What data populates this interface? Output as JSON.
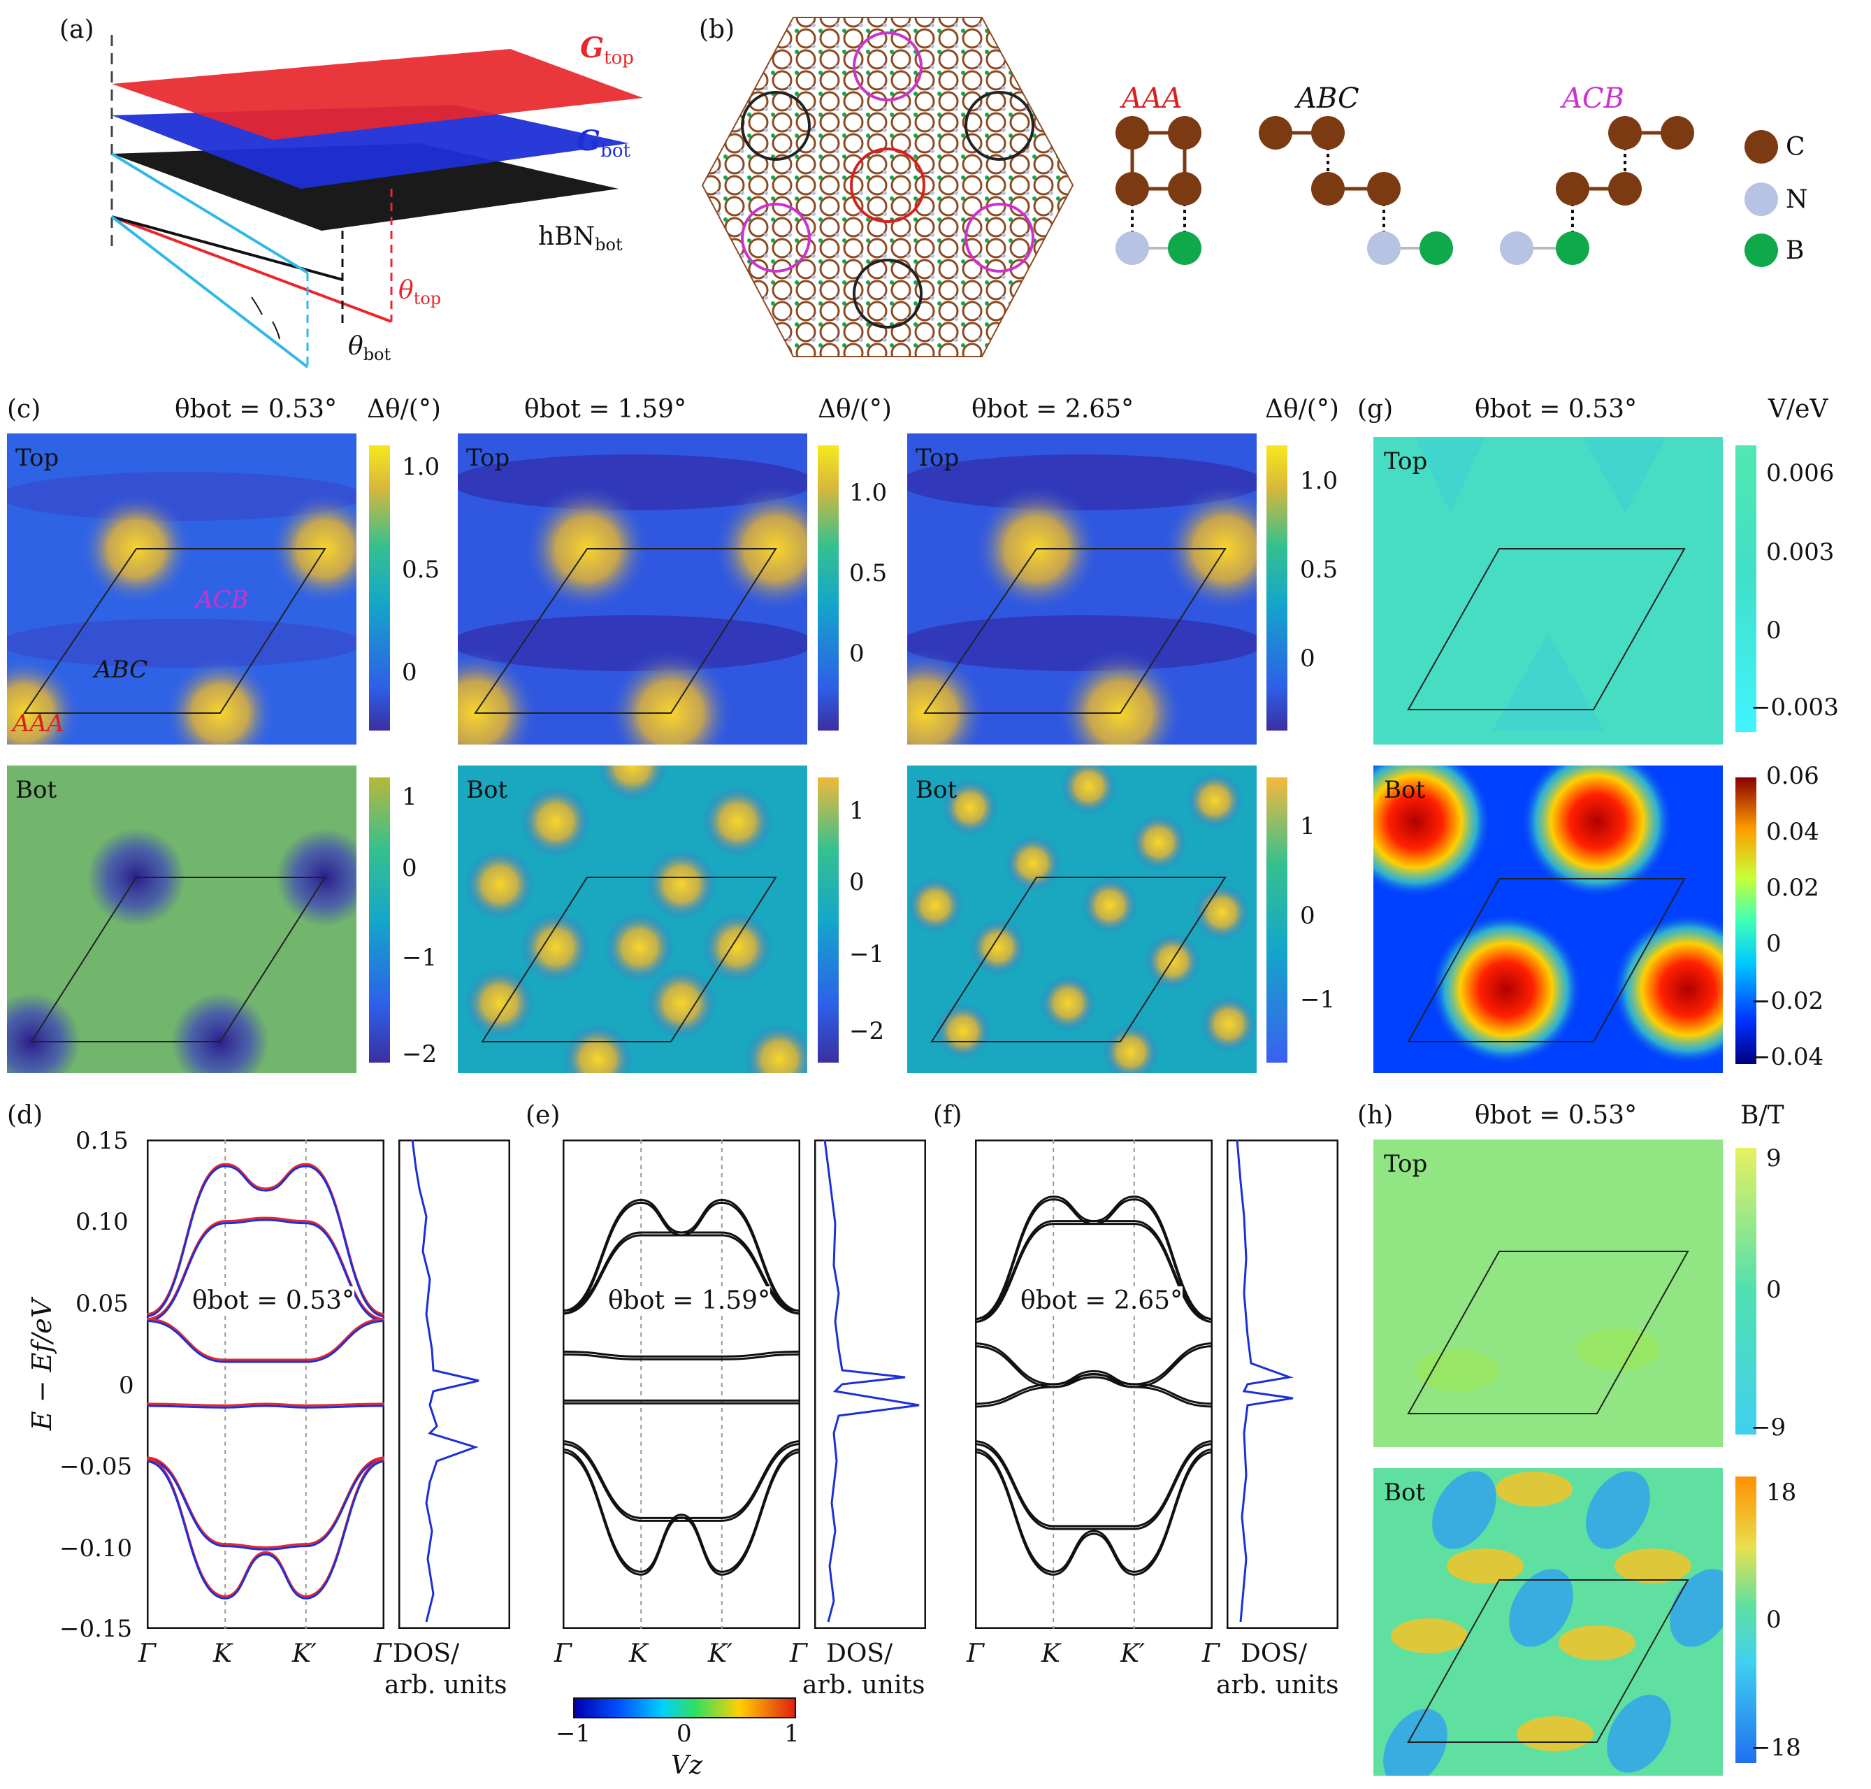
{
  "panels": {
    "a": {
      "label": "(a)",
      "g_top": "G",
      "g_top_sub": "top",
      "g_bot": "G",
      "g_bot_sub": "bot",
      "hbn": "hBN",
      "hbn_sub": "bot",
      "theta_top": "θ",
      "theta_top_sub": "top",
      "theta_bot": "θ",
      "theta_bot_sub": "bot",
      "colors": {
        "top": "#e8262b",
        "bot": "#1d2fd6",
        "hbn": "#1a1a1a",
        "cyan": "#30b8e8"
      }
    },
    "b": {
      "label": "(b)",
      "stackings": [
        "AAA",
        "ABC",
        "ACB"
      ],
      "legend": [
        "C",
        "N",
        "B"
      ],
      "colors": {
        "C": "#7b3a12",
        "N": "#b7c3e3",
        "B": "#0fa84a",
        "AAA": "#d62020",
        "ABC": "#111111",
        "ACB": "#cc33cc"
      }
    },
    "c": {
      "label": "(c)",
      "cb_title": "Δθ/(°)",
      "angles": [
        "θbot = 0.53°",
        "θbot = 1.59°",
        "θbot = 2.65°"
      ],
      "row_top": "Top",
      "row_bot": "Bot",
      "tags": {
        "AAA": "AAA",
        "ABC": "ABC",
        "ACB": "ACB"
      },
      "top_ticks": [
        [
          "1.0",
          "0.5",
          "0"
        ],
        [
          "1.0",
          "0.5",
          "0"
        ],
        [
          "1.0",
          "0.5",
          "0"
        ]
      ],
      "bot_ticks": [
        [
          "1",
          "0",
          "−1",
          "−2"
        ],
        [
          "1",
          "0",
          "−1",
          "−2"
        ],
        [
          "1",
          "0",
          "−1"
        ]
      ]
    },
    "g": {
      "label": "(g)",
      "angle": "θbot = 0.53°",
      "cb_title": "V/eV",
      "row_top": "Top",
      "row_bot": "Bot",
      "top_ticks": [
        "0.006",
        "0.003",
        "0",
        "−0.003"
      ],
      "bot_ticks": [
        "0.06",
        "0.04",
        "0.02",
        "0",
        "−0.02",
        "−0.04"
      ]
    },
    "h": {
      "label": "(h)",
      "angle": "θbot = 0.53°",
      "cb_title": "B/T",
      "row_top": "Top",
      "row_bot": "Bot",
      "top_ticks": [
        "9",
        "0",
        "−9"
      ],
      "bot_ticks": [
        "18",
        "0",
        "−18"
      ]
    },
    "d": {
      "label": "(d)",
      "angle": "θbot = 0.53°"
    },
    "e": {
      "label": "(e)",
      "angle": "θbot = 1.59°"
    },
    "f": {
      "label": "(f)",
      "angle": "θbot = 2.65°"
    },
    "band_axis": {
      "ylabel": "E − Ef/eV",
      "yticks": [
        "0.15",
        "0.10",
        "0.05",
        "0",
        "−0.05",
        "−0.10",
        "−0.15"
      ],
      "kpoints": [
        "Γ",
        "K",
        "K′",
        "Γ"
      ],
      "dos_label_1": "DOS/",
      "dos_label_2": "arb. units"
    },
    "vz_bar": {
      "title": "Vz",
      "ticks": [
        "−1",
        "0",
        "1"
      ]
    }
  },
  "chart_data": [
    {
      "type": "line",
      "panel": "d",
      "title": "θbot = 0.53°",
      "xlabel": "",
      "ylabel": "E − Ef/eV",
      "x_ticks": [
        "Γ",
        "K",
        "K′",
        "Γ"
      ],
      "ylim": [
        -0.15,
        0.15
      ],
      "series": [
        {
          "values": [
            0.043,
            0.135,
            0.12,
            0.135,
            0.043
          ]
        },
        {
          "values": [
            0.04,
            0.1,
            0.102,
            0.1,
            0.04
          ]
        },
        {
          "values": [
            0.04,
            0.015,
            0.015,
            0.015,
            0.04
          ]
        },
        {
          "values": [
            -0.012,
            -0.013,
            -0.012,
            -0.013,
            -0.012
          ]
        },
        {
          "values": [
            -0.045,
            -0.098,
            -0.1,
            -0.098,
            -0.045
          ]
        },
        {
          "values": [
            -0.046,
            -0.13,
            -0.103,
            -0.13,
            -0.046
          ]
        }
      ]
    },
    {
      "type": "line",
      "panel": "e",
      "title": "θbot = 1.59°",
      "ylim": [
        -0.15,
        0.15
      ],
      "x_ticks": [
        "Γ",
        "K",
        "K′",
        "Γ"
      ],
      "series": [
        {
          "values": [
            0.045,
            0.113,
            0.093,
            0.113,
            0.045
          ]
        },
        {
          "values": [
            0.045,
            0.093,
            0.093,
            0.093,
            0.045
          ]
        },
        {
          "values": [
            0.02,
            0.017,
            0.017,
            0.017,
            0.02
          ]
        },
        {
          "values": [
            -0.01,
            -0.01,
            -0.01,
            -0.01,
            -0.01
          ]
        },
        {
          "values": [
            -0.035,
            -0.082,
            -0.082,
            -0.082,
            -0.035
          ]
        },
        {
          "values": [
            -0.04,
            -0.115,
            -0.08,
            -0.115,
            -0.04
          ]
        }
      ]
    },
    {
      "type": "line",
      "panel": "f",
      "title": "θbot = 2.65°",
      "ylim": [
        -0.15,
        0.15
      ],
      "x_ticks": [
        "Γ",
        "K",
        "K′",
        "Γ"
      ],
      "series": [
        {
          "values": [
            0.04,
            0.115,
            0.1,
            0.115,
            0.04
          ]
        },
        {
          "values": [
            0.04,
            0.1,
            0.1,
            0.1,
            0.04
          ]
        },
        {
          "values": [
            0.025,
            0.0,
            0.008,
            0.0,
            0.025
          ]
        },
        {
          "values": [
            -0.012,
            0.0,
            0.006,
            0.0,
            -0.012
          ]
        },
        {
          "values": [
            -0.035,
            -0.087,
            -0.087,
            -0.087,
            -0.035
          ]
        },
        {
          "values": [
            -0.04,
            -0.115,
            -0.09,
            -0.115,
            -0.04
          ]
        }
      ]
    }
  ]
}
